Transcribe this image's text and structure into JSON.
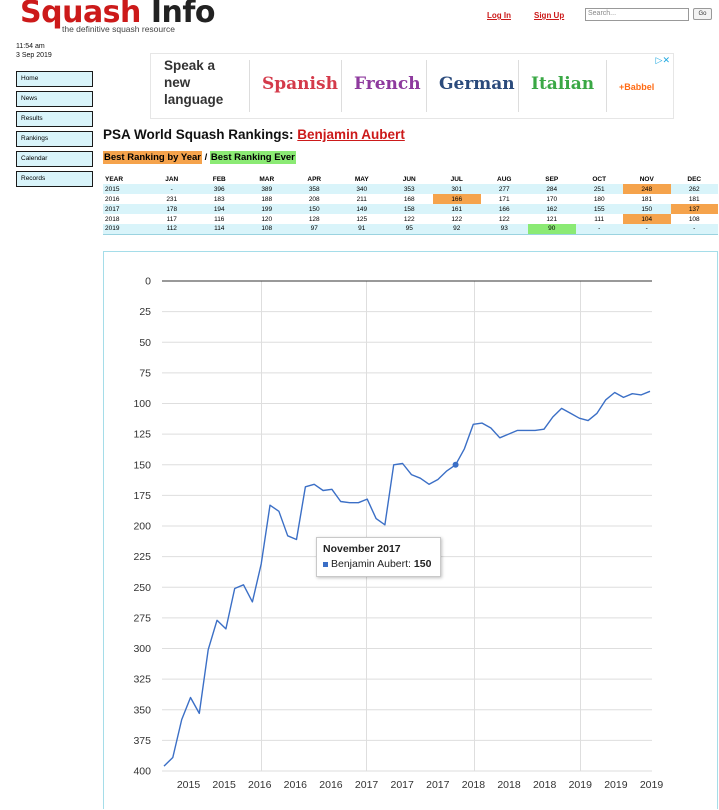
{
  "header": {
    "logo_part1": "Squash",
    "logo_part2": "Info",
    "tagline": "the definitive squash resource",
    "login": "Log In",
    "signup": "Sign Up",
    "search_placeholder": "Search...",
    "go": "Go"
  },
  "clock": {
    "time": "11:54 am",
    "date": "3 Sep 2019"
  },
  "sidebar": {
    "items": [
      {
        "label": "Home"
      },
      {
        "label": "News"
      },
      {
        "label": "Results"
      },
      {
        "label": "Rankings"
      },
      {
        "label": "Calendar"
      },
      {
        "label": "Records"
      }
    ]
  },
  "ad": {
    "speak": "Speak a new language",
    "languages": [
      "Spanish",
      "French",
      "German",
      "Italian"
    ],
    "brand": "+Babbel",
    "choices": "▷✕"
  },
  "page": {
    "title_prefix": "PSA World Squash Rankings:",
    "player": "Benjamin Aubert",
    "best_by_year": "Best Ranking by Year",
    "separator": "/",
    "best_ever": "Best Ranking Ever"
  },
  "colors": {
    "best_year": "#f5a34c",
    "best_ever": "#8bea74",
    "row_alt": "#d9f4fa",
    "line": "#3b6fc6",
    "accent": "#cc1a1a"
  },
  "table": {
    "headers": [
      "YEAR",
      "JAN",
      "FEB",
      "MAR",
      "APR",
      "MAY",
      "JUN",
      "JUL",
      "AUG",
      "SEP",
      "OCT",
      "NOV",
      "DEC"
    ],
    "rows": [
      {
        "cells": [
          "2015",
          "-",
          "396",
          "389",
          "358",
          "340",
          "353",
          "301",
          "277",
          "284",
          "251",
          "248",
          "262"
        ],
        "best_year_col": 11
      },
      {
        "cells": [
          "2016",
          "231",
          "183",
          "188",
          "208",
          "211",
          "168",
          "166",
          "171",
          "170",
          "180",
          "181",
          "181"
        ],
        "best_year_col": 7
      },
      {
        "cells": [
          "2017",
          "178",
          "194",
          "199",
          "150",
          "149",
          "158",
          "161",
          "166",
          "162",
          "155",
          "150",
          "137"
        ],
        "best_year_col": 12
      },
      {
        "cells": [
          "2018",
          "117",
          "116",
          "120",
          "128",
          "125",
          "122",
          "122",
          "122",
          "121",
          "111",
          "104",
          "108"
        ],
        "best_year_col": 11
      },
      {
        "cells": [
          "2019",
          "112",
          "114",
          "108",
          "97",
          "91",
          "95",
          "92",
          "93",
          "90",
          "-",
          "-",
          "-"
        ],
        "best_ever_col": 9
      }
    ]
  },
  "chart_data": {
    "type": "line",
    "y_inverted": true,
    "ylim": [
      0,
      400
    ],
    "yticks": [
      0,
      25,
      50,
      75,
      100,
      125,
      150,
      175,
      200,
      225,
      250,
      275,
      300,
      325,
      350,
      375,
      400
    ],
    "xtick_labels": [
      "2015",
      "2015",
      "2016",
      "2016",
      "2016",
      "2017",
      "2017",
      "2017",
      "2018",
      "2018",
      "2018",
      "2019",
      "2019",
      "2019"
    ],
    "grid": true,
    "series": [
      {
        "name": "Benjamin Aubert",
        "values": [
          396,
          389,
          358,
          340,
          353,
          301,
          277,
          284,
          251,
          248,
          262,
          231,
          183,
          188,
          208,
          211,
          168,
          166,
          171,
          170,
          180,
          181,
          181,
          178,
          194,
          199,
          150,
          149,
          158,
          161,
          166,
          162,
          155,
          150,
          137,
          117,
          116,
          120,
          128,
          125,
          122,
          122,
          122,
          121,
          111,
          104,
          108,
          112,
          114,
          108,
          97,
          91,
          95,
          92,
          93,
          90
        ]
      }
    ],
    "highlight_index": 33,
    "tooltip": {
      "title": "November 2017",
      "series": "Benjamin Aubert:",
      "value": "150"
    }
  }
}
